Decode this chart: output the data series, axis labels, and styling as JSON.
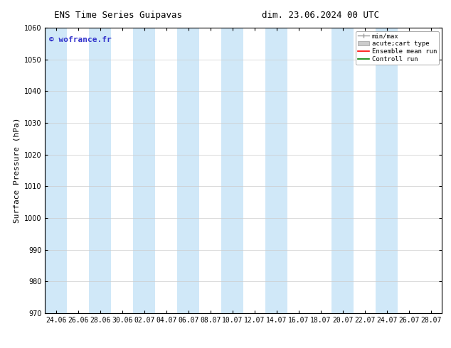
{
  "title_left": "ENS Time Series Guipavas",
  "title_right": "dim. 23.06.2024 00 UTC",
  "ylabel": "Surface Pressure (hPa)",
  "ylim": [
    970,
    1060
  ],
  "yticks": [
    970,
    980,
    990,
    1000,
    1010,
    1020,
    1030,
    1040,
    1050,
    1060
  ],
  "xtick_labels": [
    "24.06",
    "26.06",
    "28.06",
    "30.06",
    "02.07",
    "04.07",
    "06.07",
    "08.07",
    "10.07",
    "12.07",
    "14.07",
    "16.07",
    "18.07",
    "20.07",
    "22.07",
    "24.07",
    "26.07",
    "28.07"
  ],
  "num_xticks": 18,
  "shaded_band_color": "#d0e8f8",
  "shaded_band_alpha": 1.0,
  "shaded_columns": [
    0,
    2,
    4,
    6,
    8,
    10,
    13,
    15
  ],
  "background_color": "#ffffff",
  "watermark": "© wofrance.fr",
  "watermark_color": "#3333cc",
  "legend_items": [
    {
      "label": "min/max",
      "color": "#aaaaaa",
      "type": "errorbar"
    },
    {
      "label": "acute;cart type",
      "color": "#cccccc",
      "type": "bar"
    },
    {
      "label": "Ensemble mean run",
      "color": "#ff0000",
      "type": "line"
    },
    {
      "label": "Controll run",
      "color": "#008000",
      "type": "line"
    }
  ],
  "title_fontsize": 9,
  "axis_label_fontsize": 8,
  "tick_fontsize": 7,
  "legend_fontsize": 6.5
}
